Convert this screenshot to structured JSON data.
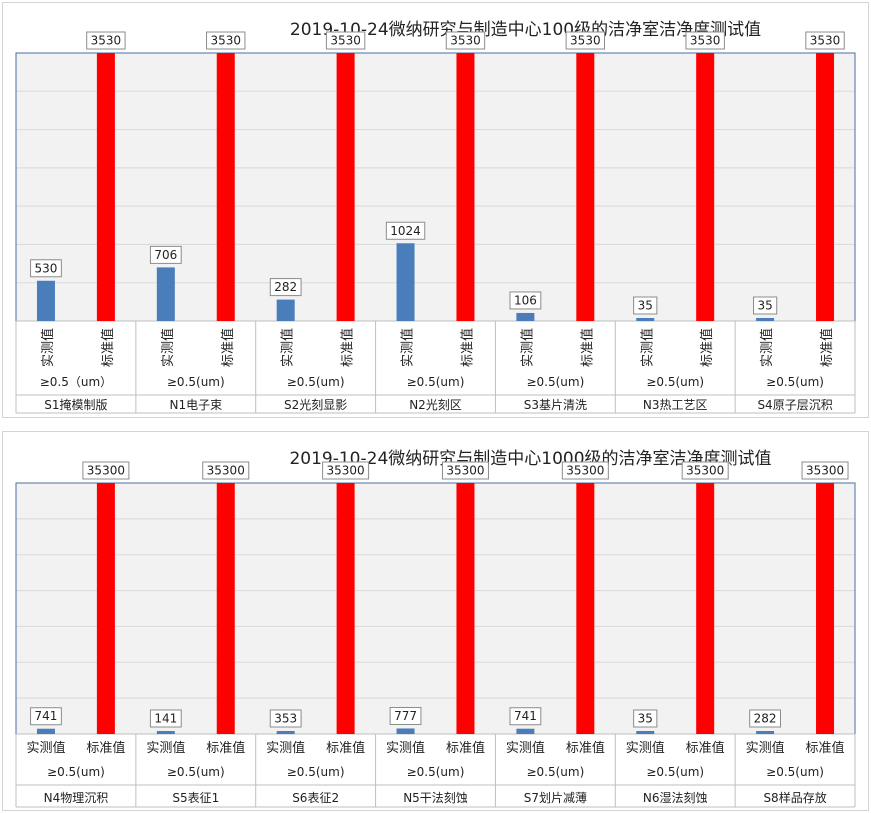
{
  "chart_data": [
    {
      "type": "bar",
      "title": "2019-10-24微纳研究与制造中心100级的洁净室洁净度测试值",
      "series": [
        {
          "name": "实测值",
          "color": "#4a7ebb"
        },
        {
          "name": "标准值",
          "color": "#ff0000"
        }
      ],
      "particle_label": [
        "≥0.5（um）",
        "≥0.5(um)",
        "≥0.5(um)",
        "≥0.5(um)",
        "≥0.5(um)",
        "≥0.5(um)",
        "≥0.5(um)"
      ],
      "categories": [
        "S1掩模制版",
        "N1电子束",
        "S2光刻显影",
        "N2光刻区",
        "S3基片清洗",
        "N3热工艺区",
        "S4原子层沉积"
      ],
      "measured": [
        530,
        706,
        282,
        1024,
        106,
        35,
        35
      ],
      "standard": [
        3530,
        3530,
        3530,
        3530,
        3530,
        3530,
        3530
      ],
      "sub_labels": [
        "实测值",
        "标准值"
      ],
      "sub_label_orientation": "vertical",
      "ylim": [
        0,
        3530
      ],
      "grid": true,
      "legend": "none"
    },
    {
      "type": "bar",
      "title": "2019-10-24微纳研究与制造中心1000级的洁净室洁净度测试值",
      "series": [
        {
          "name": "实测值",
          "color": "#4a7ebb"
        },
        {
          "name": "标准值",
          "color": "#ff0000"
        }
      ],
      "particle_label": [
        "≥0.5(um)",
        "≥0.5(um)",
        "≥0.5(um)",
        "≥0.5(um)",
        "≥0.5(um)",
        "≥0.5(um)",
        "≥0.5(um)"
      ],
      "categories": [
        "N4物理沉积",
        "S5表征1",
        "S6表征2",
        "N5干法刻蚀",
        "S7划片减薄",
        "N6湿法刻蚀",
        "S8样品存放"
      ],
      "measured": [
        741,
        141,
        353,
        777,
        741,
        35,
        282
      ],
      "standard": [
        35300,
        35300,
        35300,
        35300,
        35300,
        35300,
        35300
      ],
      "sub_labels": [
        "实测值",
        "标准值"
      ],
      "sub_label_orientation": "horizontal",
      "ylim": [
        0,
        35300
      ],
      "grid": true,
      "legend": "none"
    }
  ]
}
